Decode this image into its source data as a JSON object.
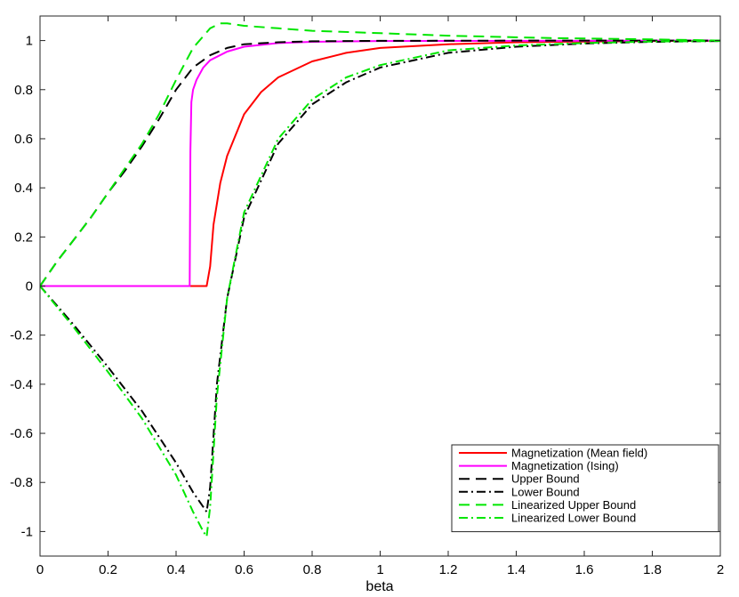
{
  "chart_data": {
    "type": "line",
    "title": "",
    "xlabel": "beta",
    "ylabel": "",
    "xlim": [
      0,
      2
    ],
    "ylim": [
      -1.1,
      1.1
    ],
    "grid": false,
    "legend_position": "bottom-right",
    "xticks": [
      0,
      0.2,
      0.4,
      0.6,
      0.8,
      1,
      1.2,
      1.4,
      1.6,
      1.8,
      2
    ],
    "xtick_labels": [
      "0",
      "0.2",
      "0.4",
      "0.6",
      "0.8",
      "1",
      "1.2",
      "1.4",
      "1.6",
      "1.8",
      "2"
    ],
    "yticks": [
      -1,
      -0.8,
      -0.6,
      -0.4,
      -0.2,
      0,
      0.2,
      0.4,
      0.6,
      0.8,
      1
    ],
    "ytick_labels": [
      "-1",
      "-0.8",
      "-0.6",
      "-0.4",
      "-0.2",
      "0",
      "0.2",
      "0.4",
      "0.6",
      "0.8",
      "1"
    ],
    "series": [
      {
        "name": "Magnetization (Mean field)",
        "color": "#ff0000",
        "style": "solid",
        "x": [
          0,
          0.2,
          0.4,
          0.49,
          0.5,
          0.51,
          0.53,
          0.55,
          0.6,
          0.65,
          0.7,
          0.8,
          0.9,
          1.0,
          1.2,
          1.4,
          1.6,
          1.8,
          2.0
        ],
        "y": [
          0,
          0,
          0,
          0,
          0.08,
          0.25,
          0.42,
          0.53,
          0.7,
          0.79,
          0.85,
          0.915,
          0.95,
          0.97,
          0.985,
          0.993,
          0.996,
          0.998,
          0.999
        ]
      },
      {
        "name": "Magnetization (Ising)",
        "color": "#ff00ff",
        "style": "solid",
        "x": [
          0,
          0.2,
          0.4,
          0.44,
          0.442,
          0.445,
          0.45,
          0.46,
          0.48,
          0.5,
          0.55,
          0.6,
          0.7,
          0.8,
          1.0,
          1.5,
          2.0
        ],
        "y": [
          0,
          0,
          0,
          0,
          0.55,
          0.75,
          0.8,
          0.84,
          0.89,
          0.92,
          0.955,
          0.975,
          0.99,
          0.995,
          0.998,
          0.999,
          1.0
        ]
      },
      {
        "name": "Upper Bound",
        "color": "#000000",
        "style": "dash",
        "x": [
          0,
          0.05,
          0.1,
          0.15,
          0.2,
          0.25,
          0.3,
          0.35,
          0.4,
          0.45,
          0.5,
          0.55,
          0.6,
          0.7,
          0.8,
          1.0,
          1.5,
          2.0
        ],
        "y": [
          0,
          0.1,
          0.19,
          0.28,
          0.38,
          0.47,
          0.57,
          0.68,
          0.8,
          0.89,
          0.94,
          0.97,
          0.985,
          0.993,
          0.997,
          0.999,
          1.0,
          1.0
        ]
      },
      {
        "name": "Lower Bound",
        "color": "#000000",
        "style": "dashdot",
        "x": [
          0,
          0.1,
          0.2,
          0.3,
          0.4,
          0.45,
          0.48,
          0.49,
          0.5,
          0.52,
          0.55,
          0.6,
          0.7,
          0.8,
          0.9,
          1.0,
          1.2,
          1.4,
          1.6,
          1.8,
          2.0
        ],
        "y": [
          0,
          -0.16,
          -0.33,
          -0.51,
          -0.72,
          -0.84,
          -0.9,
          -0.92,
          -0.82,
          -0.4,
          -0.05,
          0.28,
          0.58,
          0.74,
          0.83,
          0.89,
          0.95,
          0.975,
          0.988,
          0.995,
          0.998
        ]
      },
      {
        "name": "Linearized Upper Bound",
        "color": "#00e600",
        "style": "dash",
        "x": [
          0,
          0.05,
          0.1,
          0.15,
          0.2,
          0.25,
          0.3,
          0.35,
          0.4,
          0.45,
          0.5,
          0.53,
          0.55,
          0.6,
          0.7,
          0.8,
          1.0,
          1.2,
          1.5,
          1.8,
          2.0
        ],
        "y": [
          0,
          0.1,
          0.19,
          0.28,
          0.38,
          0.48,
          0.58,
          0.7,
          0.84,
          0.97,
          1.05,
          1.07,
          1.07,
          1.06,
          1.05,
          1.04,
          1.03,
          1.02,
          1.01,
          1.005,
          1.0
        ]
      },
      {
        "name": "Linearized Lower Bound",
        "color": "#00e600",
        "style": "dashdot",
        "x": [
          0,
          0.1,
          0.2,
          0.3,
          0.4,
          0.45,
          0.48,
          0.49,
          0.5,
          0.52,
          0.55,
          0.6,
          0.7,
          0.8,
          0.9,
          1.0,
          1.2,
          1.4,
          1.6,
          1.8,
          2.0
        ],
        "y": [
          0,
          -0.17,
          -0.35,
          -0.54,
          -0.77,
          -0.92,
          -1.0,
          -1.02,
          -0.9,
          -0.45,
          -0.05,
          0.3,
          0.6,
          0.76,
          0.85,
          0.9,
          0.96,
          0.98,
          0.99,
          0.996,
          0.998
        ]
      }
    ]
  }
}
